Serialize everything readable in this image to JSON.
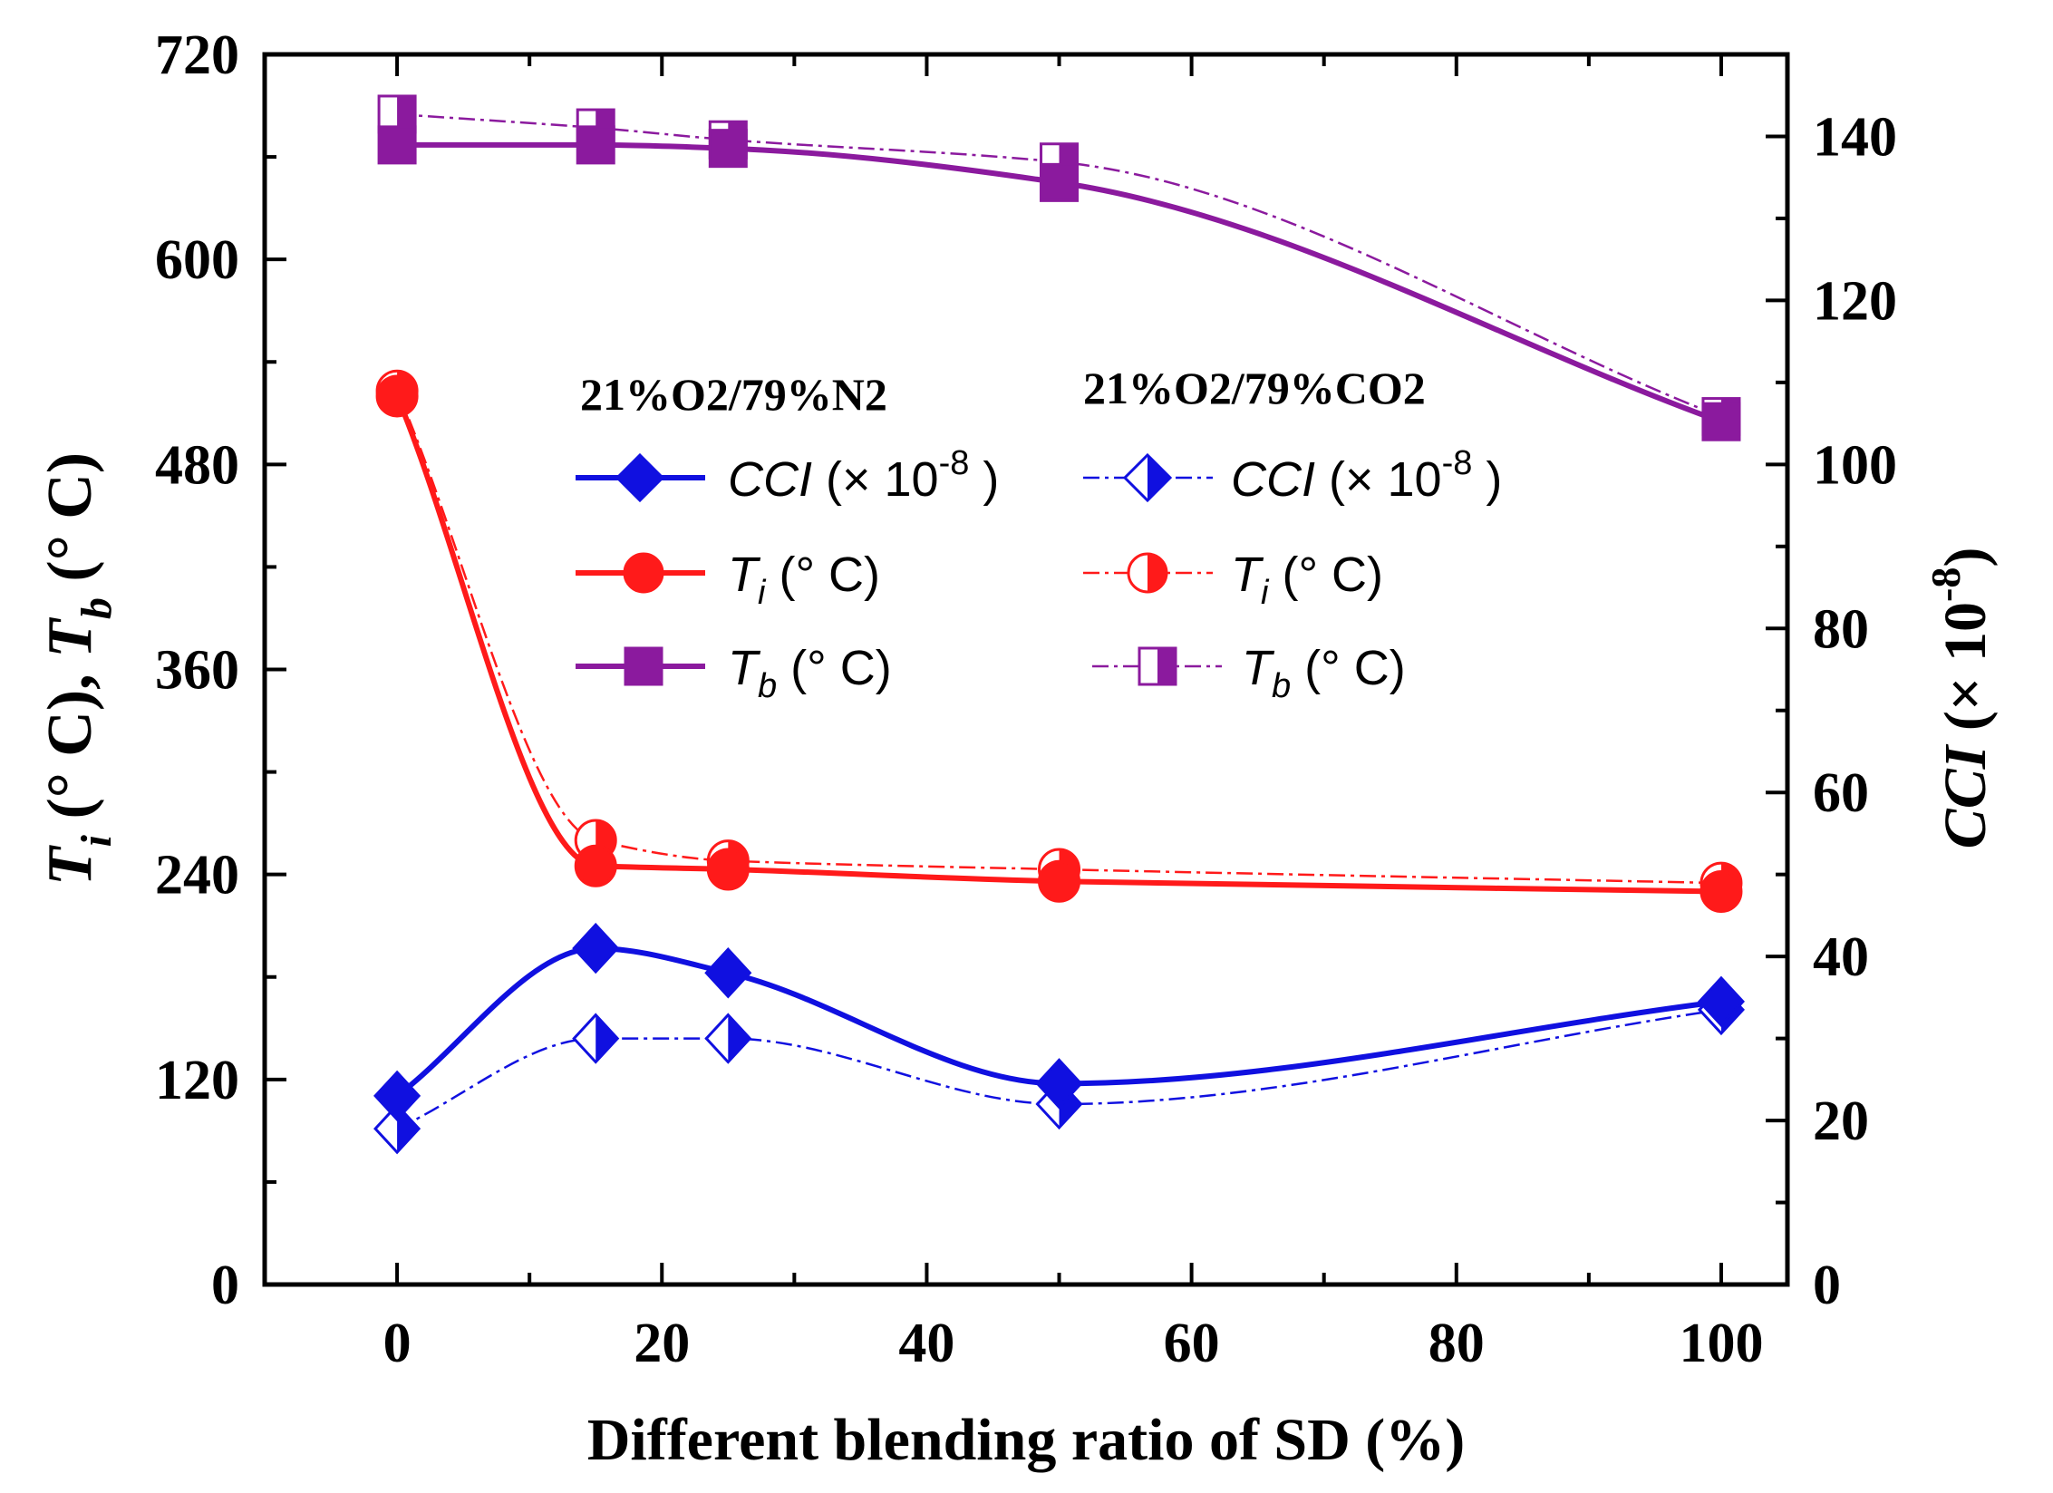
{
  "chart_data": {
    "type": "line",
    "xlabel": "Different blending ratio of SD (%)",
    "ylabel_left": "Ti (° C), Tb (° C)",
    "ylabel_left_parts": {
      "t1": "T",
      "s1": "i",
      "u1": " (° C), ",
      "t2": "T",
      "s2": "b",
      "u2": " (° C)"
    },
    "ylabel_right": "CCI (× 10-8)",
    "ylabel_right_parts": {
      "a": "CCI",
      "b": " (× 10",
      "c": "-8",
      "d": ")"
    },
    "xlim": [
      -10,
      105
    ],
    "ylim_left": [
      0,
      720
    ],
    "ylim_right": [
      0,
      150
    ],
    "x_ticks": [
      0,
      20,
      40,
      60,
      80,
      100
    ],
    "x_tick_labels": [
      "0",
      "20",
      "40",
      "60",
      "80",
      "100"
    ],
    "y_left_ticks": [
      0,
      120,
      240,
      360,
      480,
      600,
      720
    ],
    "y_left_tick_labels": [
      "0",
      "120",
      "240",
      "360",
      "480",
      "600",
      "720"
    ],
    "y_right_ticks": [
      0,
      20,
      40,
      60,
      80,
      100,
      120,
      140
    ],
    "y_right_tick_labels": [
      "0",
      "20",
      "40",
      "60",
      "80",
      "100",
      "120",
      "140"
    ],
    "x": [
      0,
      15,
      25,
      50,
      100
    ],
    "legend_groups": [
      "21%O2/79%N2",
      "21%O2/79%CO2"
    ],
    "legend_entry_labels": {
      "ccl": {
        "main": "CCI",
        "unit": " (× 10",
        "sup": "-8",
        "close": " )"
      },
      "ti": {
        "main": "T",
        "sub": "i",
        "unit": " (° C)"
      },
      "tb": {
        "main": "T",
        "sub": "b",
        "unit": " (° C)"
      }
    },
    "series": [
      {
        "name": "CCI (× 10-8) 21%O2/79%N2",
        "axis": "right",
        "marker": "diamond",
        "fill": "full",
        "color": "#1010e0",
        "dash": "solid",
        "values": [
          23,
          41,
          38,
          24.5,
          34.5
        ]
      },
      {
        "name": "Ti (° C) 21%O2/79%N2",
        "axis": "left",
        "marker": "circle",
        "fill": "full",
        "color": "#ff1a1a",
        "dash": "solid",
        "values": [
          520,
          245,
          243,
          236,
          230
        ]
      },
      {
        "name": "Tb (° C) 21%O2/79%N2",
        "axis": "left",
        "marker": "square",
        "fill": "full",
        "color": "#8b1a9e",
        "dash": "solid",
        "values": [
          667,
          667,
          665,
          645,
          505
        ]
      },
      {
        "name": "CCI (× 10-8) 21%O2/79%CO2",
        "axis": "right",
        "marker": "diamond",
        "fill": "half",
        "color": "#1010e0",
        "dash": "dashdot",
        "values": [
          19,
          30,
          30,
          22,
          33.5
        ]
      },
      {
        "name": "Ti (° C) 21%O2/79%CO2",
        "axis": "left",
        "marker": "circle",
        "fill": "half",
        "color": "#ff1a1a",
        "dash": "dashdot",
        "values": [
          523,
          260,
          248,
          243,
          235
        ]
      },
      {
        "name": "Tb (° C) 21%O2/79%CO2",
        "axis": "left",
        "marker": "square",
        "fill": "half",
        "color": "#8b1a9e",
        "dash": "dashdot",
        "values": [
          685,
          677,
          670,
          657,
          508
        ]
      }
    ]
  }
}
